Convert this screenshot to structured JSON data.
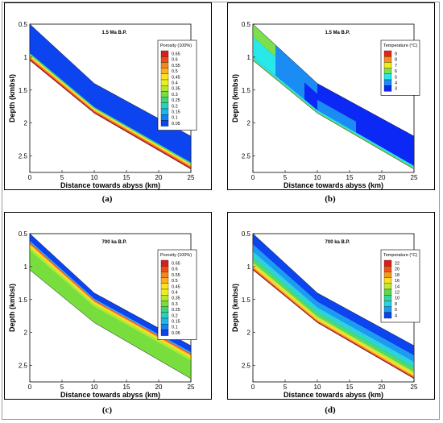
{
  "figure": {
    "panels": [
      {
        "id": "a",
        "title": "1.5 Ma B.P.",
        "caption": "(a)",
        "legend_title": "Porosity (100%)",
        "legend_levels": [
          "0.65",
          "0.6",
          "0.55",
          "0.5",
          "0.45",
          "0.4",
          "0.35",
          "0.3",
          "0.25",
          "0.2",
          "0.15",
          "0.1",
          "0.05"
        ],
        "legend_colors": [
          "#d81e1e",
          "#f04a16",
          "#f7861a",
          "#fbb01f",
          "#ffe21f",
          "#e8f01d",
          "#b6e82a",
          "#78de3e",
          "#3ad67c",
          "#28d0c0",
          "#1eb4ec",
          "#1482ee",
          "#0c44f0"
        ],
        "xlabel": "Distance towards abyss (km)",
        "ylabel": "Depth (kmbsl)"
      },
      {
        "id": "b",
        "title": "1.5 Ma B.P.",
        "caption": "(b)",
        "legend_title": "Temperature (°C)",
        "legend_levels": [
          "9",
          "8",
          "7",
          "6",
          "5",
          "4",
          "3"
        ],
        "legend_colors": [
          "#e82418",
          "#fc8e1c",
          "#f2ea1a",
          "#7ce04a",
          "#28e8ea",
          "#1a8cf4",
          "#0c28f4"
        ],
        "xlabel": "Distance towards abyss (km)",
        "ylabel": "Depth (kmbsl)"
      },
      {
        "id": "c",
        "title": "700 ka B.P.",
        "caption": "(c)",
        "legend_title": "Porosity (100%)",
        "legend_levels": [
          "0.65",
          "0.6",
          "0.55",
          "0.5",
          "0.45",
          "0.4",
          "0.35",
          "0.3",
          "0.25",
          "0.2",
          "0.15",
          "0.1",
          "0.05"
        ],
        "legend_colors": [
          "#d81e1e",
          "#f04a16",
          "#f7861a",
          "#fbb01f",
          "#ffe21f",
          "#e8f01d",
          "#b6e82a",
          "#78de3e",
          "#3ad67c",
          "#28d0c0",
          "#1eb4ec",
          "#1482ee",
          "#0c44f0"
        ],
        "xlabel": "Distance towards abyss (km)",
        "ylabel": "Depth (kmbsl)"
      },
      {
        "id": "d",
        "title": "700 ka B.P.",
        "caption": "(d)",
        "legend_title": "Temperature (°C)",
        "legend_levels": [
          "22",
          "20",
          "18",
          "16",
          "14",
          "12",
          "10",
          "8",
          "6",
          "4"
        ],
        "legend_colors": [
          "#d81e1e",
          "#f2521a",
          "#f8981e",
          "#fde01e",
          "#bee83a",
          "#5ed64e",
          "#34d69a",
          "#28d2e0",
          "#1c9cf0",
          "#0c44f0"
        ],
        "xlabel": "Distance towards abyss (km)",
        "ylabel": "Depth (kmbsl)"
      }
    ]
  },
  "chart_data": [
    {
      "type": "heatmap",
      "title": "1.5 Ma B.P.",
      "xlabel": "Distance towards abyss (km)",
      "ylabel": "Depth (kmbsl)",
      "xlim": [
        0,
        25
      ],
      "ylim": [
        2.75,
        0.5
      ],
      "x_ticks": [
        "0",
        "5",
        "10",
        "15",
        "20",
        "25"
      ],
      "y_ticks": [
        "0.5",
        "1",
        "1.5",
        "2",
        "2.5"
      ],
      "top_surface": {
        "x": [
          0,
          10,
          25
        ],
        "y": [
          0.5,
          1.4,
          2.2
        ]
      },
      "base_surface": {
        "x": [
          0,
          10,
          25
        ],
        "y": [
          1.05,
          1.85,
          2.7
        ]
      },
      "legend": {
        "title": "Porosity (100%)",
        "levels": [
          0.65,
          0.6,
          0.55,
          0.5,
          0.45,
          0.4,
          0.35,
          0.3,
          0.25,
          0.2,
          0.15,
          0.1,
          0.05
        ]
      },
      "bands": [
        {
          "from": 0.0,
          "to": 0.8,
          "color": "#0c44f0"
        },
        {
          "from": 0.8,
          "to": 0.85,
          "color": "#3ad67c"
        },
        {
          "from": 0.85,
          "to": 0.9,
          "color": "#ffe21f"
        },
        {
          "from": 0.9,
          "to": 0.95,
          "color": "#f7861a"
        },
        {
          "from": 0.95,
          "to": 1.0,
          "color": "#d81e1e"
        }
      ],
      "blocks": []
    },
    {
      "type": "heatmap",
      "title": "1.5 Ma B.P.",
      "xlabel": "Distance towards abyss (km)",
      "ylabel": "Depth (kmbsl)",
      "xlim": [
        0,
        25
      ],
      "ylim": [
        2.75,
        0.5
      ],
      "x_ticks": [
        "0",
        "5",
        "10",
        "15",
        "20",
        "25"
      ],
      "y_ticks": [
        "0.5",
        "1",
        "1.5",
        "2",
        "2.5"
      ],
      "top_surface": {
        "x": [
          0,
          10,
          25
        ],
        "y": [
          0.5,
          1.4,
          2.2
        ]
      },
      "base_surface": {
        "x": [
          0,
          10,
          25
        ],
        "y": [
          1.05,
          1.85,
          2.7
        ]
      },
      "legend": {
        "title": "Temperature (°C)",
        "levels": [
          9,
          8,
          7,
          6,
          5,
          4,
          3
        ]
      },
      "bands": [
        {
          "from": 0.0,
          "to": 1.0,
          "color": "#0c28f4"
        },
        {
          "from": 0.9,
          "to": 0.96,
          "color": "#28e8ea"
        },
        {
          "from": 0.96,
          "to": 1.0,
          "color": "#7ce04a"
        }
      ],
      "blocks": [
        {
          "x0": 0,
          "x1": 3.5,
          "from": 0.0,
          "to": 0.35,
          "color": "#7ce04a"
        },
        {
          "x0": 0,
          "x1": 3.5,
          "from": 0.35,
          "to": 0.9,
          "color": "#28e8ea"
        },
        {
          "x0": 3.5,
          "x1": 8,
          "from": 0.0,
          "to": 0.9,
          "color": "#1a8cf4"
        },
        {
          "x0": 8,
          "x1": 10,
          "from": 0.0,
          "to": 0.35,
          "color": "#1a8cf4"
        },
        {
          "x0": 10,
          "x1": 16,
          "from": 0.55,
          "to": 0.9,
          "color": "#1a8cf4"
        }
      ]
    },
    {
      "type": "heatmap",
      "title": "700 ka B.P.",
      "xlabel": "Distance towards abyss (km)",
      "ylabel": "Depth (kmbsl)",
      "xlim": [
        0,
        25
      ],
      "ylim": [
        2.75,
        0.5
      ],
      "x_ticks": [
        "0",
        "5",
        "10",
        "15",
        "20",
        "25"
      ],
      "y_ticks": [
        "0.5",
        "1",
        "1.5",
        "2",
        "2.5"
      ],
      "top_surface": {
        "x": [
          0,
          10,
          25
        ],
        "y": [
          0.5,
          1.4,
          2.2
        ]
      },
      "base_surface": {
        "x": [
          0,
          10,
          25
        ],
        "y": [
          1.05,
          1.85,
          2.7
        ]
      },
      "legend": {
        "title": "Porosity (100%)",
        "levels": [
          0.65,
          0.6,
          0.55,
          0.5,
          0.45,
          0.4,
          0.35,
          0.3,
          0.25,
          0.2,
          0.15,
          0.1,
          0.05
        ]
      },
      "bands": [
        {
          "from": 0.0,
          "to": 0.2,
          "color": "#0c44f0"
        },
        {
          "from": 0.2,
          "to": 0.24,
          "color": "#1eb4ec"
        },
        {
          "from": 0.24,
          "to": 0.28,
          "color": "#f04a16"
        },
        {
          "from": 0.28,
          "to": 0.32,
          "color": "#fbb01f"
        },
        {
          "from": 0.32,
          "to": 0.36,
          "color": "#ffe21f"
        },
        {
          "from": 0.36,
          "to": 0.45,
          "color": "#b6e82a"
        },
        {
          "from": 0.45,
          "to": 1.0,
          "color": "#78de3e"
        }
      ],
      "blocks": []
    },
    {
      "type": "heatmap",
      "title": "700 ka B.P.",
      "xlabel": "Distance towards abyss (km)",
      "ylabel": "Depth (kmbsl)",
      "xlim": [
        0,
        25
      ],
      "ylim": [
        2.75,
        0.5
      ],
      "x_ticks": [
        "0",
        "5",
        "10",
        "15",
        "20",
        "25"
      ],
      "y_ticks": [
        "0.5",
        "1",
        "1.5",
        "2",
        "2.5"
      ],
      "top_surface": {
        "x": [
          0,
          10,
          25
        ],
        "y": [
          0.5,
          1.4,
          2.2
        ]
      },
      "base_surface": {
        "x": [
          0,
          10,
          25
        ],
        "y": [
          1.05,
          1.85,
          2.7
        ]
      },
      "legend": {
        "title": "Temperature (°C)",
        "levels": [
          22,
          20,
          18,
          16,
          14,
          12,
          10,
          8,
          6,
          4
        ]
      },
      "bands": [
        {
          "from": 0.0,
          "to": 0.3,
          "color": "#0c44f0"
        },
        {
          "from": 0.3,
          "to": 0.5,
          "color": "#1c9cf0"
        },
        {
          "from": 0.5,
          "to": 0.62,
          "color": "#28d2e0"
        },
        {
          "from": 0.62,
          "to": 0.72,
          "color": "#34d69a"
        },
        {
          "from": 0.72,
          "to": 0.8,
          "color": "#5ed64e"
        },
        {
          "from": 0.8,
          "to": 0.86,
          "color": "#bee83a"
        },
        {
          "from": 0.86,
          "to": 0.91,
          "color": "#fde01e"
        },
        {
          "from": 0.91,
          "to": 0.96,
          "color": "#f8981e"
        },
        {
          "from": 0.96,
          "to": 1.0,
          "color": "#d81e1e"
        }
      ],
      "blocks": []
    }
  ]
}
